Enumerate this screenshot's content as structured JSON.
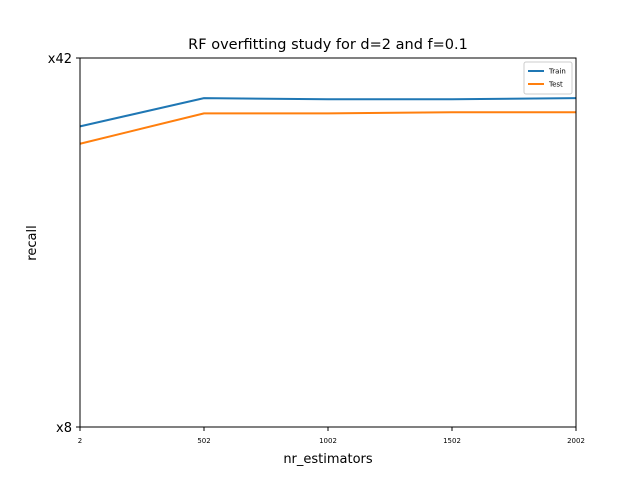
{
  "chart_data": {
    "type": "line",
    "title": "RF overfitting study for d=2 and f=0.1",
    "xlabel": "nr_estimators",
    "ylabel": "recall",
    "x": [
      2,
      502,
      1002,
      1502,
      2002
    ],
    "x_tick_labels": [
      "2",
      "502",
      "1002",
      "1502",
      "2002"
    ],
    "y_tick_labels": [
      "x8",
      "x42"
    ],
    "ylim": [
      8,
      42
    ],
    "series": [
      {
        "name": "Train",
        "color": "#1f77b4",
        "values": [
          35.7,
          38.3,
          38.2,
          38.2,
          38.3
        ]
      },
      {
        "name": "Test",
        "color": "#ff7f0e",
        "values": [
          34.1,
          36.9,
          36.9,
          37.0,
          37.0
        ]
      }
    ],
    "grid": false,
    "legend_position": "upper-right"
  }
}
